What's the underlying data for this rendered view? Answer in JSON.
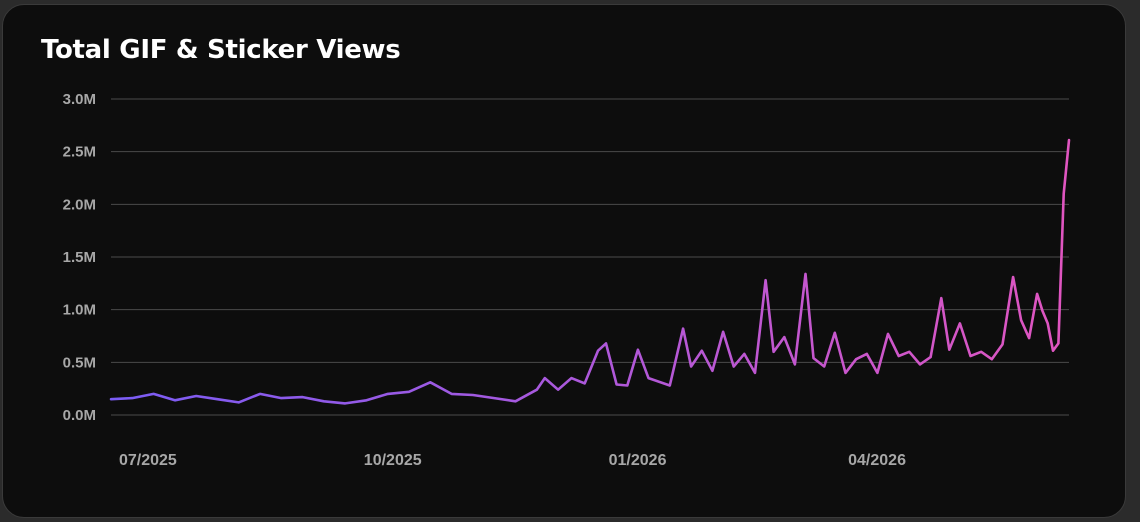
{
  "chart_data": {
    "type": "line",
    "title": "Total GIF & Sticker Views",
    "xlabel": "",
    "ylabel": "",
    "ylim": [
      0,
      3000000
    ],
    "y_ticks": [
      {
        "value": 0,
        "label": "0.0M"
      },
      {
        "value": 500000,
        "label": "0.5M"
      },
      {
        "value": 1000000,
        "label": "1.0M"
      },
      {
        "value": 1500000,
        "label": "1.5M"
      },
      {
        "value": 2000000,
        "label": "2.0M"
      },
      {
        "value": 2500000,
        "label": "2.5M"
      },
      {
        "value": 3000000,
        "label": "3.0M"
      }
    ],
    "x_ticks": [
      {
        "value": "2025-07-01",
        "label": "07/2025"
      },
      {
        "value": "2025-10-01",
        "label": "10/2025"
      },
      {
        "value": "2026-01-01",
        "label": "01/2026"
      },
      {
        "value": "2026-04-01",
        "label": "04/2026"
      }
    ],
    "xlim": [
      "2025-06-28",
      "2026-06-23"
    ],
    "grid": true,
    "legend": "none",
    "line_gradient": [
      "#7a5cf5",
      "#e055c0"
    ],
    "series": [
      {
        "values": [
          [
            "2025-06-28",
            150000
          ],
          [
            "2025-07-06",
            160000
          ],
          [
            "2025-07-14",
            200000
          ],
          [
            "2025-07-22",
            140000
          ],
          [
            "2025-07-30",
            180000
          ],
          [
            "2025-08-07",
            150000
          ],
          [
            "2025-08-15",
            120000
          ],
          [
            "2025-08-23",
            200000
          ],
          [
            "2025-08-31",
            160000
          ],
          [
            "2025-09-08",
            170000
          ],
          [
            "2025-09-16",
            130000
          ],
          [
            "2025-09-24",
            110000
          ],
          [
            "2025-10-02",
            140000
          ],
          [
            "2025-10-10",
            200000
          ],
          [
            "2025-10-18",
            220000
          ],
          [
            "2025-10-26",
            310000
          ],
          [
            "2025-11-03",
            200000
          ],
          [
            "2025-11-11",
            190000
          ],
          [
            "2025-11-19",
            160000
          ],
          [
            "2025-11-27",
            130000
          ],
          [
            "2025-12-05",
            240000
          ],
          [
            "2025-12-08",
            350000
          ],
          [
            "2025-12-13",
            240000
          ],
          [
            "2025-12-18",
            350000
          ],
          [
            "2025-12-23",
            300000
          ],
          [
            "2025-12-28",
            610000
          ],
          [
            "2025-12-31",
            680000
          ],
          [
            "2026-01-04",
            290000
          ],
          [
            "2026-01-08",
            280000
          ],
          [
            "2026-01-12",
            620000
          ],
          [
            "2026-01-16",
            350000
          ],
          [
            "2026-01-24",
            280000
          ],
          [
            "2026-01-29",
            820000
          ],
          [
            "2026-02-01",
            460000
          ],
          [
            "2026-02-05",
            610000
          ],
          [
            "2026-02-09",
            420000
          ],
          [
            "2026-02-13",
            790000
          ],
          [
            "2026-02-17",
            460000
          ],
          [
            "2026-02-21",
            580000
          ],
          [
            "2026-02-25",
            400000
          ],
          [
            "2026-03-01",
            1280000
          ],
          [
            "2026-03-04",
            600000
          ],
          [
            "2026-03-08",
            740000
          ],
          [
            "2026-03-12",
            480000
          ],
          [
            "2026-03-16",
            1340000
          ],
          [
            "2026-03-19",
            540000
          ],
          [
            "2026-03-23",
            460000
          ],
          [
            "2026-03-27",
            780000
          ],
          [
            "2026-03-31",
            400000
          ],
          [
            "2026-04-04",
            530000
          ],
          [
            "2026-04-08",
            580000
          ],
          [
            "2026-04-12",
            400000
          ],
          [
            "2026-04-16",
            770000
          ],
          [
            "2026-04-20",
            560000
          ],
          [
            "2026-04-24",
            600000
          ],
          [
            "2026-04-28",
            480000
          ],
          [
            "2026-05-02",
            550000
          ],
          [
            "2026-05-06",
            1110000
          ],
          [
            "2026-05-09",
            620000
          ],
          [
            "2026-05-13",
            870000
          ],
          [
            "2026-05-17",
            560000
          ],
          [
            "2026-05-21",
            600000
          ],
          [
            "2026-05-25",
            530000
          ],
          [
            "2026-05-29",
            670000
          ],
          [
            "2026-06-02",
            1310000
          ],
          [
            "2026-06-05",
            900000
          ],
          [
            "2026-06-08",
            730000
          ],
          [
            "2026-06-11",
            1150000
          ],
          [
            "2026-06-13",
            990000
          ],
          [
            "2026-06-15",
            870000
          ],
          [
            "2026-06-17",
            610000
          ],
          [
            "2026-06-19",
            680000
          ],
          [
            "2026-06-21",
            2100000
          ],
          [
            "2026-06-23",
            2610000
          ]
        ]
      }
    ]
  }
}
